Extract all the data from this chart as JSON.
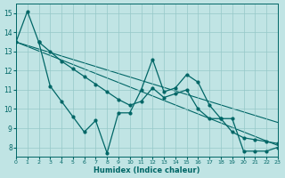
{
  "xlabel": "Humidex (Indice chaleur)",
  "background_color": "#c0e4e4",
  "grid_color": "#96c8c8",
  "line_color": "#006666",
  "xlim": [
    0,
    23
  ],
  "ylim": [
    7.5,
    15.5
  ],
  "yticks": [
    8,
    9,
    10,
    11,
    12,
    13,
    14,
    15
  ],
  "xticks": [
    0,
    1,
    2,
    3,
    4,
    5,
    6,
    7,
    8,
    9,
    10,
    11,
    12,
    13,
    14,
    15,
    16,
    17,
    18,
    19,
    20,
    21,
    22,
    23
  ],
  "curve1_x": [
    0,
    1,
    2,
    3,
    4,
    5,
    6,
    7,
    8,
    9,
    10,
    11,
    12,
    13,
    14,
    15,
    16,
    17,
    18,
    19,
    20,
    21,
    22,
    23
  ],
  "curve1_y": [
    13.5,
    15.1,
    13.5,
    13.0,
    12.5,
    12.1,
    11.7,
    11.3,
    10.9,
    10.5,
    10.2,
    10.4,
    11.1,
    10.6,
    10.8,
    11.0,
    10.0,
    9.5,
    9.5,
    8.8,
    8.5,
    8.4,
    8.3,
    8.2
  ],
  "curve2_x": [
    2,
    3,
    4,
    5,
    6,
    7,
    8,
    9,
    10,
    11,
    12,
    13,
    14,
    15,
    16,
    17,
    18,
    19,
    20,
    21,
    22,
    23
  ],
  "curve2_y": [
    13.5,
    11.2,
    10.4,
    9.6,
    8.8,
    9.4,
    7.7,
    9.8,
    9.8,
    11.0,
    12.6,
    10.9,
    11.1,
    11.8,
    11.4,
    10.2,
    9.5,
    9.5,
    7.8,
    7.8,
    7.8,
    8.0
  ],
  "trend1_x": [
    0,
    23
  ],
  "trend1_y": [
    13.5,
    8.1
  ],
  "trend2_x": [
    0,
    23
  ],
  "trend2_y": [
    13.5,
    9.3
  ]
}
